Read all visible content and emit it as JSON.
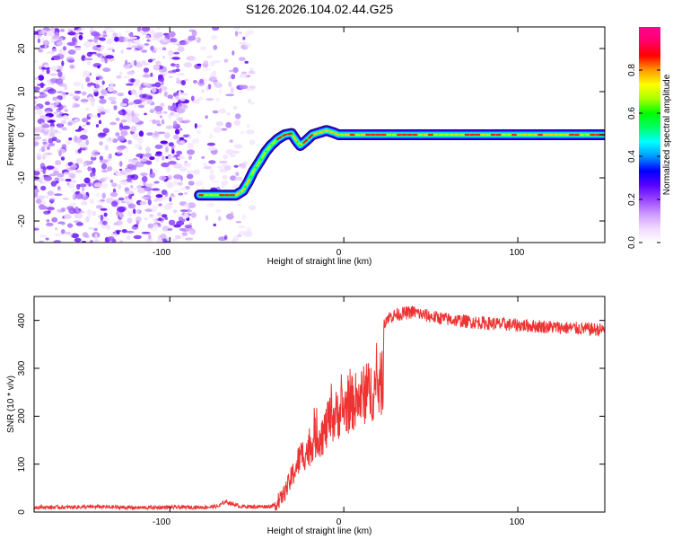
{
  "chart_data": [
    {
      "type": "heatmap",
      "title": "S126.2026.104.02.44.G25",
      "xlabel": "Height of straight line (km)",
      "ylabel": "Frequency (Hz)",
      "xlim": [
        -178,
        150
      ],
      "ylim": [
        -25,
        25
      ],
      "xticks": [
        "-100",
        "0",
        "100"
      ],
      "yticks": [
        "20",
        "10",
        "0",
        "-10",
        "-20"
      ],
      "colorbar": {
        "label": "Normalized spectral amplitude",
        "range": [
          0,
          1
        ],
        "ticks": [
          "0.0",
          "0.2",
          "0.4",
          "0.6",
          "0.8"
        ],
        "colors": [
          "#ffffff",
          "#f0d8ff",
          "#cc99ff",
          "#9944ff",
          "#5500ff",
          "#0000ff",
          "#0099ff",
          "#00ffff",
          "#00ff66",
          "#00ff00",
          "#aaff00",
          "#ffff00",
          "#ff9900",
          "#ff0000",
          "#ff0066",
          "#ff0099"
        ]
      },
      "noise_region": {
        "x_start": -178,
        "x_end": -52,
        "y_range": [
          -25,
          25
        ]
      },
      "ridge": {
        "x": [
          -83,
          -75,
          -68,
          -62,
          -58,
          -55,
          -52,
          -48,
          -45,
          -42,
          -38,
          -34,
          -30,
          -27,
          -25,
          -22,
          -18,
          -14,
          -10,
          -6,
          -3,
          0,
          5,
          30,
          60,
          100,
          150
        ],
        "y": [
          -14,
          -14,
          -14,
          -14,
          -13,
          -11,
          -8.5,
          -6,
          -4,
          -2.5,
          -1,
          0,
          0.3,
          -1.5,
          -2.5,
          -1.5,
          0,
          0.5,
          1,
          0.5,
          0,
          0,
          0,
          0,
          0,
          0,
          0
        ]
      }
    },
    {
      "type": "line",
      "xlabel": "Height of straight line (km)",
      "ylabel": "SNR (10 * v/v)",
      "xlim": [
        -178,
        150
      ],
      "ylim": [
        0,
        450
      ],
      "xticks": [
        "-100",
        "0",
        "100"
      ],
      "yticks": [
        "0",
        "100",
        "200",
        "300",
        "400"
      ],
      "color": "#ee3333",
      "x": [
        -178,
        -160,
        -140,
        -120,
        -100,
        -80,
        -72,
        -68,
        -60,
        -50,
        -42,
        -38,
        -35,
        -32,
        -28,
        -25,
        -22,
        -20,
        -18,
        -15,
        -12,
        -10,
        -8,
        -5,
        -2,
        0,
        3,
        6,
        10,
        14,
        18,
        20,
        21,
        22,
        22.5,
        23,
        25,
        30,
        35,
        40,
        45,
        50,
        60,
        70,
        80,
        90,
        100,
        110,
        120,
        130,
        140,
        150
      ],
      "y": [
        10,
        10,
        11,
        9,
        10,
        10,
        12,
        22,
        12,
        11,
        12,
        18,
        35,
        55,
        90,
        115,
        125,
        130,
        148,
        158,
        162,
        175,
        190,
        200,
        210,
        215,
        222,
        230,
        240,
        250,
        258,
        262,
        265,
        268,
        200,
        395,
        405,
        412,
        415,
        418,
        412,
        408,
        402,
        398,
        395,
        392,
        390,
        388,
        386,
        384,
        382,
        380
      ]
    }
  ]
}
